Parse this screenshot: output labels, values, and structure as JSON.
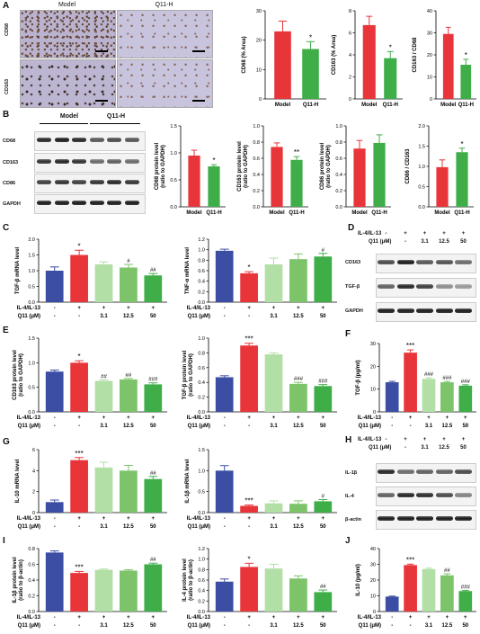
{
  "panels": {
    "A": "A",
    "B": "B",
    "C": "C",
    "D": "D",
    "E": "E",
    "F": "F",
    "G": "G",
    "H": "H",
    "I": "I",
    "J": "J"
  },
  "micrograph": {
    "col1": "Model",
    "col2": "Q11-H",
    "row1": "CD68",
    "row2": "CD163"
  },
  "blot_b": {
    "model": "Model",
    "q11h": "Q11-H",
    "rows": [
      "CD68",
      "CD163",
      "CD86",
      "GAPDH"
    ]
  },
  "blot_d": {
    "rows": [
      "CD163",
      "TGF-β",
      "GAPDH"
    ]
  },
  "blot_h": {
    "rows": [
      "IL-1β",
      "IL-4",
      "β-actin"
    ]
  },
  "treat": {
    "row1": "IL-4/IL-13",
    "row2": "Q11 (μM)",
    "r1": [
      "-",
      "+",
      "+",
      "+",
      "+"
    ],
    "r2": [
      "-",
      "-",
      "3.1",
      "12.5",
      "50"
    ]
  },
  "colors": {
    "model": "#e8353a",
    "q11": "#3fae49",
    "control": "#3c4ea3",
    "light1": "#b2dfa6",
    "mid": "#7cc36a",
    "dark": "#3fae49"
  },
  "chart_data": [
    {
      "id": "A1",
      "type": "bar",
      "categories": [
        "Model",
        "Q11-H"
      ],
      "values": [
        23,
        17
      ],
      "errors": [
        3.5,
        2.5
      ],
      "ylabel": "CD68 (% Area)",
      "ylim": [
        0,
        30
      ],
      "yticks": [
        0,
        10,
        20,
        30
      ],
      "sig": [
        "",
        "*"
      ]
    },
    {
      "id": "A2",
      "type": "bar",
      "categories": [
        "Model",
        "Q11-H"
      ],
      "values": [
        6.7,
        3.7
      ],
      "errors": [
        0.8,
        0.6
      ],
      "ylabel": "CD163 (% Area)",
      "ylim": [
        0,
        8
      ],
      "yticks": [
        0,
        2,
        4,
        6,
        8
      ],
      "sig": [
        "",
        "*"
      ]
    },
    {
      "id": "A3",
      "type": "bar",
      "categories": [
        "Model",
        "Q11-H"
      ],
      "values": [
        29.5,
        15.5
      ],
      "errors": [
        3.0,
        2.5
      ],
      "ylabel": "CD163 / CD68",
      "ylim": [
        0,
        40
      ],
      "yticks": [
        0,
        10,
        20,
        30,
        40
      ],
      "sig": [
        "",
        "*"
      ]
    },
    {
      "id": "B1",
      "type": "bar",
      "categories": [
        "Model",
        "Q11-H"
      ],
      "values": [
        0.95,
        0.75
      ],
      "errors": [
        0.1,
        0.03
      ],
      "ylabel": "CD68 protein level (ratio to GAPDH)",
      "ylim": [
        0,
        1.5
      ],
      "yticks": [
        0.0,
        0.5,
        1.0,
        1.5
      ],
      "sig": [
        "",
        "*"
      ]
    },
    {
      "id": "B2",
      "type": "bar",
      "categories": [
        "Model",
        "Q11-H"
      ],
      "values": [
        0.74,
        0.58
      ],
      "errors": [
        0.05,
        0.04
      ],
      "ylabel": "CD163 protein level (ratio to GAPDH)",
      "ylim": [
        0,
        1.0
      ],
      "yticks": [
        0.0,
        0.2,
        0.4,
        0.6,
        0.8,
        1.0
      ],
      "sig": [
        "",
        "**"
      ]
    },
    {
      "id": "B3",
      "type": "bar",
      "categories": [
        "Model",
        "Q11-H"
      ],
      "values": [
        0.72,
        0.79
      ],
      "errors": [
        0.1,
        0.1
      ],
      "ylabel": "CD86 protein level (ratio to GAPDH)",
      "ylim": [
        0,
        1.0
      ],
      "yticks": [
        0.0,
        0.2,
        0.4,
        0.6,
        0.8,
        1.0
      ],
      "sig": [
        "",
        ""
      ]
    },
    {
      "id": "B4",
      "type": "bar",
      "categories": [
        "Model",
        "Q11-H"
      ],
      "values": [
        0.98,
        1.35
      ],
      "errors": [
        0.18,
        0.1
      ],
      "ylabel": "CD86 / CD163",
      "ylim": [
        0,
        2.0
      ],
      "yticks": [
        0.0,
        0.5,
        1.0,
        1.5,
        2.0
      ],
      "sig": [
        "",
        "*"
      ]
    },
    {
      "id": "C1",
      "type": "bar",
      "categories": [
        "1",
        "2",
        "3",
        "4",
        "5"
      ],
      "values": [
        1.0,
        1.5,
        1.2,
        1.1,
        0.85
      ],
      "errors": [
        0.12,
        0.15,
        0.08,
        0.1,
        0.06
      ],
      "ylabel": "TGF-β mRNA level",
      "ylim": [
        0,
        2.0
      ],
      "yticks": [
        0.0,
        0.5,
        1.0,
        1.5,
        2.0
      ],
      "sig": [
        "",
        "*",
        "",
        "#",
        "##"
      ]
    },
    {
      "id": "C2",
      "type": "bar",
      "categories": [
        "1",
        "2",
        "3",
        "4",
        "5"
      ],
      "values": [
        0.98,
        0.55,
        0.72,
        0.82,
        0.87
      ],
      "errors": [
        0.03,
        0.03,
        0.12,
        0.1,
        0.06
      ],
      "ylabel": "TNF-α mRNA level",
      "ylim": [
        0,
        1.2
      ],
      "yticks": [
        0.0,
        0.2,
        0.4,
        0.6,
        0.8,
        1.0,
        1.2
      ],
      "sig": [
        "",
        "*",
        "",
        "",
        "#"
      ]
    },
    {
      "id": "E1",
      "type": "bar",
      "categories": [
        "1",
        "2",
        "3",
        "4",
        "5"
      ],
      "values": [
        0.82,
        1.0,
        0.63,
        0.66,
        0.56
      ],
      "errors": [
        0.03,
        0.04,
        0.02,
        0.02,
        0.03
      ],
      "ylabel": "CD163 protein level (ratio to GAPDH)",
      "ylim": [
        0,
        1.5
      ],
      "yticks": [
        0.0,
        0.5,
        1.0,
        1.5
      ],
      "sig": [
        "",
        "*",
        "##",
        "##",
        "###"
      ]
    },
    {
      "id": "E2",
      "type": "bar",
      "categories": [
        "1",
        "2",
        "3",
        "4",
        "5"
      ],
      "values": [
        0.47,
        0.9,
        0.78,
        0.38,
        0.35
      ],
      "errors": [
        0.02,
        0.03,
        0.02,
        0.02,
        0.02
      ],
      "ylabel": "TGF-β protein level (ratio to GAPDH)",
      "ylim": [
        0,
        1.0
      ],
      "yticks": [
        0.0,
        0.2,
        0.4,
        0.6,
        0.8,
        1.0
      ],
      "sig": [
        "",
        "***",
        "",
        "###",
        "###"
      ]
    },
    {
      "id": "F",
      "type": "bar",
      "categories": [
        "1",
        "2",
        "3",
        "4",
        "5"
      ],
      "values": [
        13,
        26,
        14.5,
        13,
        11.5
      ],
      "errors": [
        0.4,
        1.2,
        0.5,
        0.4,
        0.4
      ],
      "ylabel": "TGF-β (pg/ml)",
      "ylim": [
        0,
        30
      ],
      "yticks": [
        0,
        10,
        20,
        30
      ],
      "sig": [
        "",
        "***",
        "###",
        "###",
        "###"
      ]
    },
    {
      "id": "G1",
      "type": "bar",
      "categories": [
        "1",
        "2",
        "3",
        "4",
        "5"
      ],
      "values": [
        1.0,
        5.0,
        4.3,
        4.0,
        3.2
      ],
      "errors": [
        0.2,
        0.25,
        0.5,
        0.5,
        0.25
      ],
      "ylabel": "IL-10 mRNA level",
      "ylim": [
        0,
        6
      ],
      "yticks": [
        0,
        2,
        4,
        6
      ],
      "sig": [
        "",
        "***",
        "",
        "",
        "##"
      ]
    },
    {
      "id": "G2",
      "type": "bar",
      "categories": [
        "1",
        "2",
        "3",
        "4",
        "5"
      ],
      "values": [
        1.0,
        0.16,
        0.22,
        0.21,
        0.27
      ],
      "errors": [
        0.12,
        0.02,
        0.06,
        0.07,
        0.04
      ],
      "ylabel": "IL-1β mRNA level",
      "ylim": [
        0,
        1.5
      ],
      "yticks": [
        0.0,
        0.5,
        1.0,
        1.5
      ],
      "sig": [
        "",
        "***",
        "",
        "",
        "#"
      ]
    },
    {
      "id": "I1",
      "type": "bar",
      "categories": [
        "1",
        "2",
        "3",
        "4",
        "5"
      ],
      "values": [
        0.75,
        0.49,
        0.53,
        0.52,
        0.6
      ],
      "errors": [
        0.02,
        0.02,
        0.01,
        0.01,
        0.015
      ],
      "ylabel": "IL-1β protein level (ratio to β-actin)",
      "ylim": [
        0,
        0.8
      ],
      "yticks": [
        0.0,
        0.2,
        0.4,
        0.6,
        0.8
      ],
      "sig": [
        "",
        "***",
        "",
        "",
        "##"
      ]
    },
    {
      "id": "I2",
      "type": "bar",
      "categories": [
        "1",
        "2",
        "3",
        "4",
        "5"
      ],
      "values": [
        0.57,
        0.85,
        0.82,
        0.63,
        0.37
      ],
      "errors": [
        0.05,
        0.07,
        0.08,
        0.05,
        0.04
      ],
      "ylabel": "IL-4 protein level (ratio to β-actin)",
      "ylim": [
        0,
        1.2
      ],
      "yticks": [
        0.0,
        0.2,
        0.4,
        0.6,
        0.8,
        1.0,
        1.2
      ],
      "sig": [
        "",
        "*",
        "",
        "",
        "##"
      ]
    },
    {
      "id": "J",
      "type": "bar",
      "categories": [
        "1",
        "2",
        "3",
        "4",
        "5"
      ],
      "values": [
        9.5,
        29.5,
        27,
        23,
        13
      ],
      "errors": [
        0.3,
        0.6,
        0.6,
        1.0,
        0.4
      ],
      "ylabel": "IL-10 (pg/ml)",
      "ylim": [
        0,
        40
      ],
      "yticks": [
        0,
        10,
        20,
        30,
        40
      ],
      "sig": [
        "",
        "***",
        "",
        "##",
        "###"
      ]
    }
  ]
}
